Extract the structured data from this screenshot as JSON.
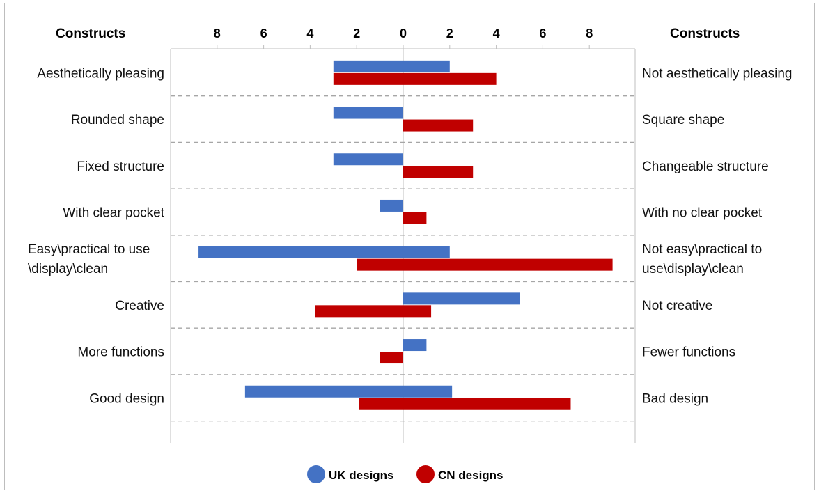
{
  "chart_data": {
    "type": "bar",
    "orientation": "horizontal-diverging",
    "left_header": "Constructs",
    "right_header": "Constructs",
    "x_ticks": [
      "8",
      "6",
      "4",
      "2",
      "0",
      "2",
      "4",
      "6",
      "8"
    ],
    "xlim": [
      -10,
      10
    ],
    "grid": "dashed row separators",
    "legend_position": "bottom-center",
    "rows": [
      {
        "left": [
          "Aesthetically pleasing"
        ],
        "right": [
          "Not aesthetically pleasing"
        ]
      },
      {
        "left": [
          "Rounded shape"
        ],
        "right": [
          "Square shape"
        ]
      },
      {
        "left": [
          "Fixed structure"
        ],
        "right": [
          "Changeable structure"
        ]
      },
      {
        "left": [
          "With clear pocket"
        ],
        "right": [
          "With no clear pocket"
        ]
      },
      {
        "left": [
          "Easy\\practical to use",
          "\\display\\clean"
        ],
        "right": [
          "Not easy\\practical to",
          "use\\display\\clean"
        ]
      },
      {
        "left": [
          "Creative"
        ],
        "right": [
          "Not creative"
        ]
      },
      {
        "left": [
          "More functions"
        ],
        "right": [
          "Fewer functions"
        ]
      },
      {
        "left": [
          "Good design"
        ],
        "right": [
          "Bad design"
        ]
      }
    ],
    "series": [
      {
        "name": "UK designs",
        "color": "#4472C4",
        "ranges": [
          [
            -3,
            2
          ],
          [
            -3,
            0
          ],
          [
            -3,
            0
          ],
          [
            -1,
            0
          ],
          [
            -8.8,
            2
          ],
          [
            0,
            5
          ],
          [
            0,
            1
          ],
          [
            -6.8,
            2.1
          ]
        ]
      },
      {
        "name": "CN designs",
        "color": "#C00000",
        "ranges": [
          [
            -3,
            4
          ],
          [
            0,
            3
          ],
          [
            0,
            3
          ],
          [
            0,
            1
          ],
          [
            -2,
            9
          ],
          [
            -3.8,
            1.2
          ],
          [
            -1,
            0
          ],
          [
            -1.9,
            7.2
          ]
        ]
      }
    ]
  }
}
